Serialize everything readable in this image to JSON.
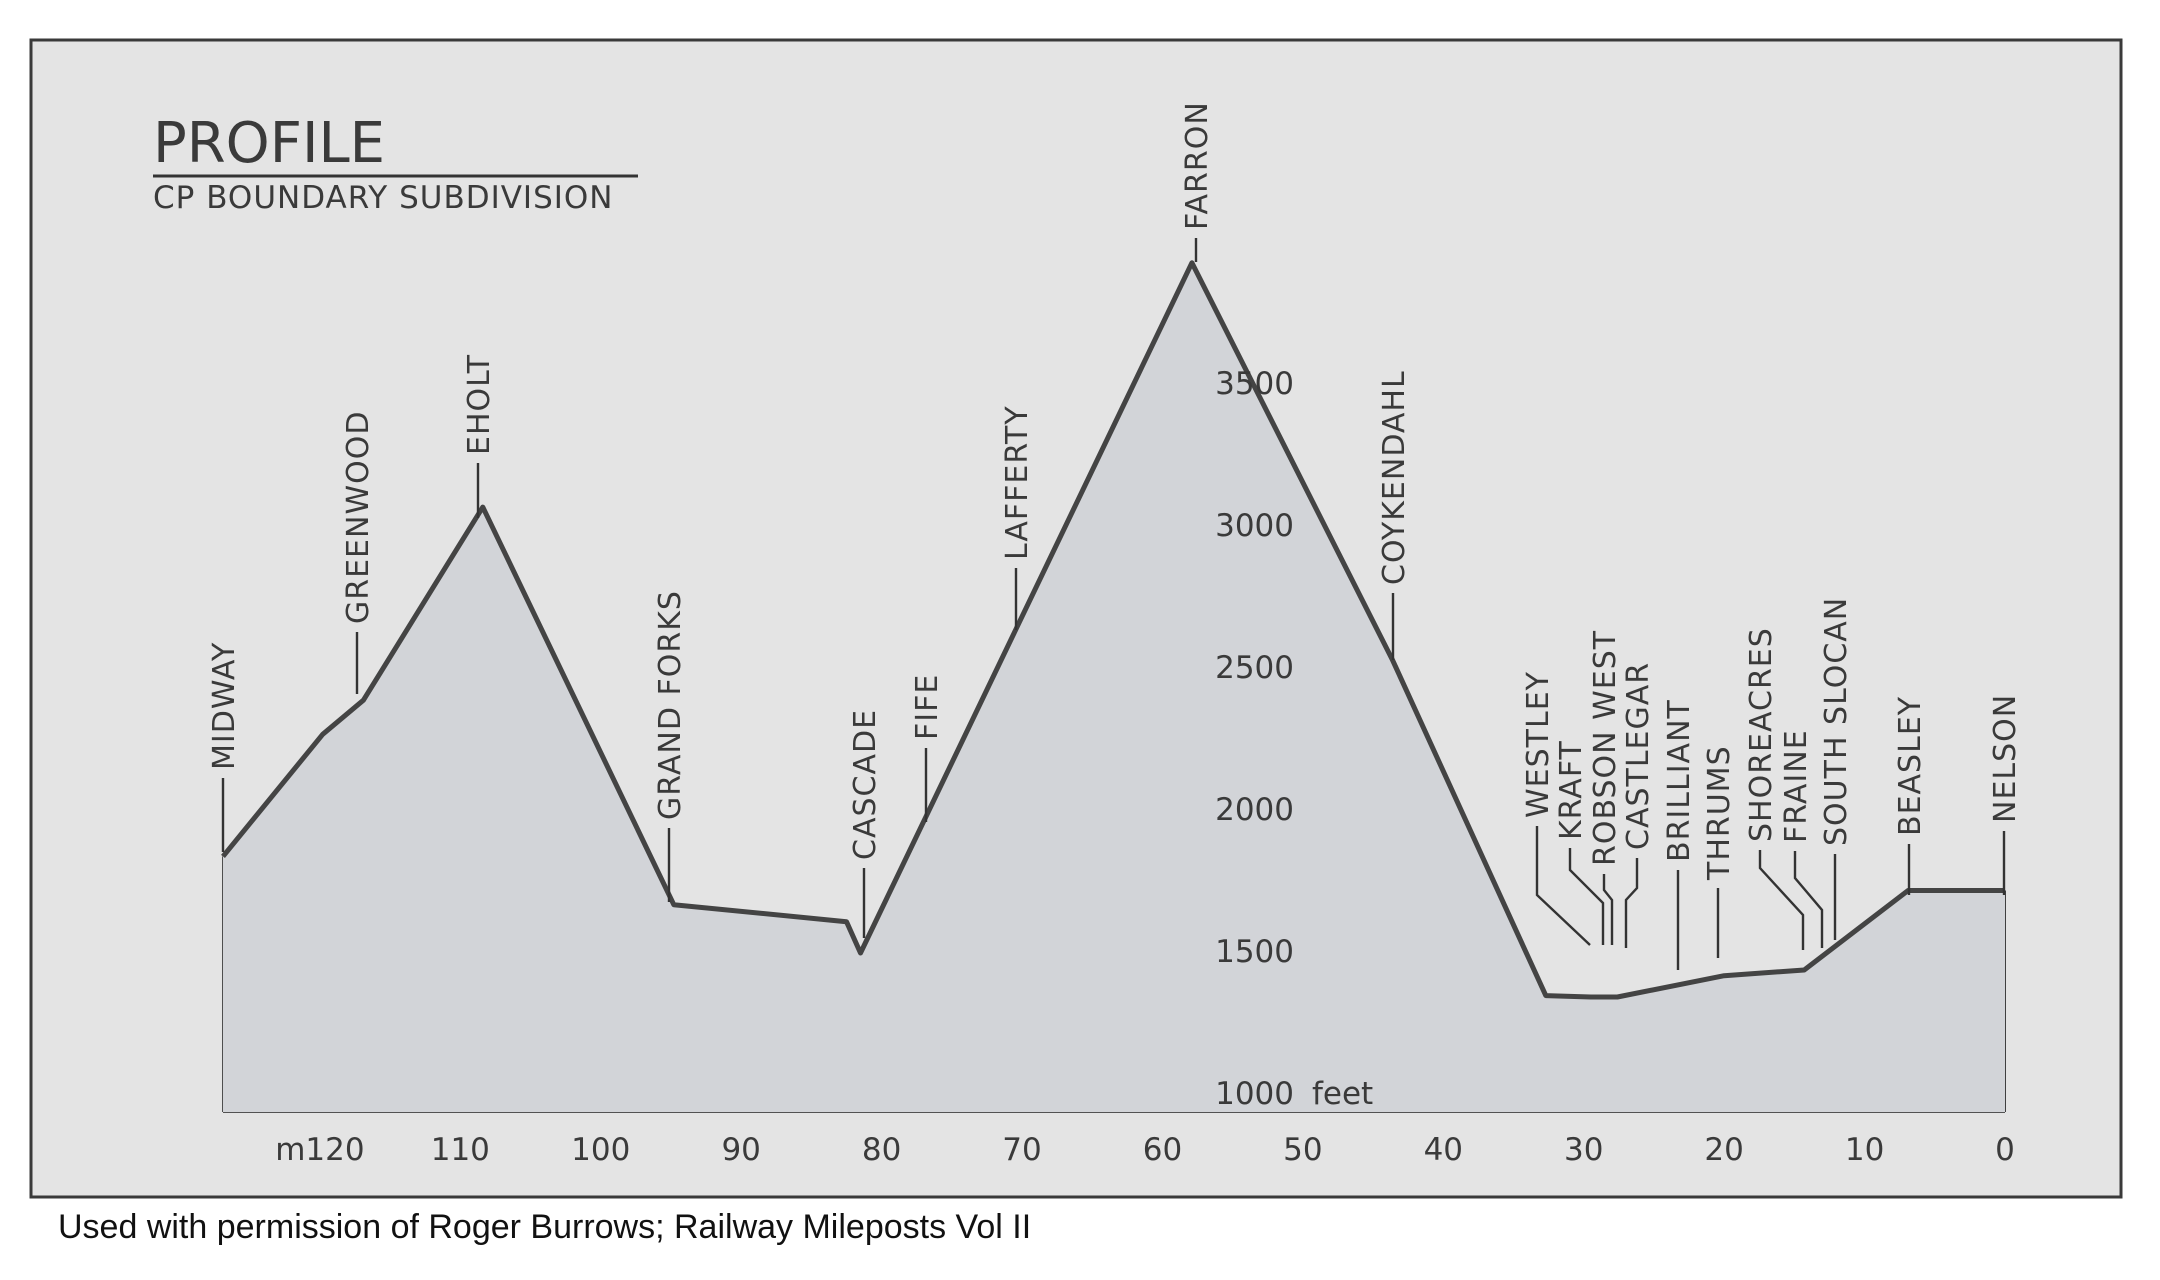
{
  "chart_data": {
    "type": "area",
    "title": "PROFILE",
    "subtitle": "CP BOUNDARY SUBDIVISION",
    "x_ticks": [
      {
        "value": 120,
        "label": "m120"
      },
      {
        "value": 110,
        "label": "110"
      },
      {
        "value": 100,
        "label": "100"
      },
      {
        "value": 90,
        "label": "90"
      },
      {
        "value": 80,
        "label": "80"
      },
      {
        "value": 70,
        "label": "70"
      },
      {
        "value": 60,
        "label": "60"
      },
      {
        "value": 50,
        "label": "50"
      },
      {
        "value": 40,
        "label": "40"
      },
      {
        "value": 30,
        "label": "30"
      },
      {
        "value": 20,
        "label": "20"
      },
      {
        "value": 10,
        "label": "10"
      },
      {
        "value": 0,
        "label": "0"
      }
    ],
    "y_ticks": [
      {
        "value": 1000,
        "label": "1000"
      },
      {
        "value": 1500,
        "label": "1500"
      },
      {
        "value": 2000,
        "label": "2000"
      },
      {
        "value": 2500,
        "label": "2500"
      },
      {
        "value": 3000,
        "label": "3000"
      },
      {
        "value": 3500,
        "label": "3500"
      }
    ],
    "y_unit": "feet",
    "xlim": [
      126.9,
      0
    ],
    "ylim": [
      1000,
      4000
    ],
    "grid": true,
    "profile": [
      {
        "x": 126.9,
        "y": 1900
      },
      {
        "x": 119.8,
        "y": 2330
      },
      {
        "x": 116.9,
        "y": 2450
      },
      {
        "x": 108.4,
        "y": 3130
      },
      {
        "x": 94.8,
        "y": 1730
      },
      {
        "x": 82.5,
        "y": 1670
      },
      {
        "x": 81.5,
        "y": 1560
      },
      {
        "x": 57.9,
        "y": 3990
      },
      {
        "x": 43.6,
        "y": 2590
      },
      {
        "x": 32.7,
        "y": 1410
      },
      {
        "x": 29.5,
        "y": 1405
      },
      {
        "x": 27.6,
        "y": 1405
      },
      {
        "x": 20.0,
        "y": 1480
      },
      {
        "x": 14.3,
        "y": 1500
      },
      {
        "x": 6.9,
        "y": 1780
      },
      {
        "x": 0,
        "y": 1780
      }
    ],
    "stations": [
      {
        "name": "MIDWAY",
        "x": 126.9
      },
      {
        "name": "GREENWOOD",
        "x": 116.9
      },
      {
        "name": "EHOLT",
        "x": 108.4
      },
      {
        "name": "GRAND FORKS",
        "x": 94.8
      },
      {
        "name": "CASCADE",
        "x": 81.5
      },
      {
        "name": "FIFE",
        "x": 77.5
      },
      {
        "name": "LAFFERTY",
        "x": 70.7
      },
      {
        "name": "FARRON",
        "x": 57.9
      },
      {
        "name": "COYKENDAHL",
        "x": 43.6
      },
      {
        "name": "WESTLEY",
        "x": 30.5
      },
      {
        "name": "KRAFT",
        "x": 29.3
      },
      {
        "name": "ROBSON WEST",
        "x": 28.1
      },
      {
        "name": "CASTLEGAR",
        "x": 27.0
      },
      {
        "name": "BRILLIANT",
        "x": 23.5
      },
      {
        "name": "THRUMS",
        "x": 20.0
      },
      {
        "name": "SHOREACRES",
        "x": 14.3
      },
      {
        "name": "FRAINE",
        "x": 13.0
      },
      {
        "name": "SOUTH SLOCAN",
        "x": 12.1
      },
      {
        "name": "BEASLEY",
        "x": 6.9
      },
      {
        "name": "NELSON",
        "x": 0
      }
    ]
  },
  "credit": "Used with permission of Roger Burrows; Railway Mileposts Vol II"
}
